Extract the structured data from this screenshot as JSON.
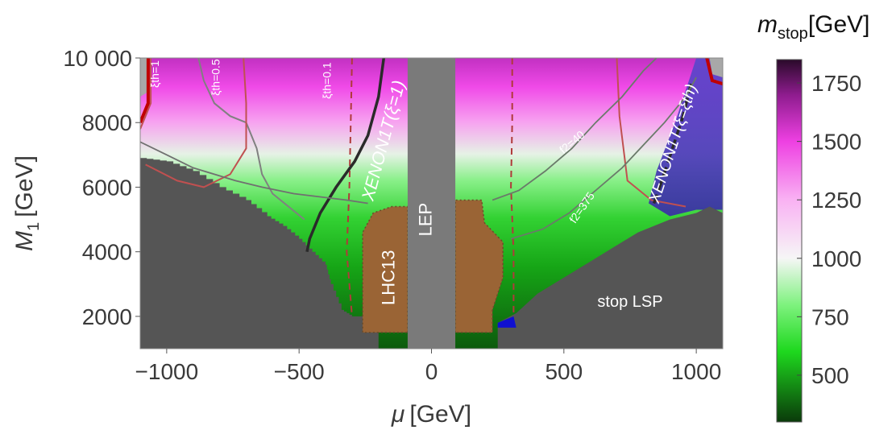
{
  "chart_data": {
    "type": "heatmap",
    "xlabel_sym": "μ",
    "xlabel_unit": "[GeV]",
    "ylabel_sym": "M",
    "ylabel_sub": "1",
    "ylabel_unit": "[GeV]",
    "xlim": [
      -1100,
      1100
    ],
    "ylim": [
      1000,
      10000
    ],
    "x_ticks": [
      {
        "value": -1000,
        "label": "−1000"
      },
      {
        "value": -500,
        "label": "−500"
      },
      {
        "value": 0,
        "label": "0"
      },
      {
        "value": 500,
        "label": "500"
      },
      {
        "value": 1000,
        "label": "1000"
      }
    ],
    "y_ticks": [
      {
        "value": 2000,
        "label": "2000"
      },
      {
        "value": 4000,
        "label": "4000"
      },
      {
        "value": 6000,
        "label": "6000"
      },
      {
        "value": 8000,
        "label": "8000"
      },
      {
        "value": 10000,
        "label": "10 000"
      }
    ],
    "colorbar": {
      "title_sym": "m",
      "title_sub": "stop",
      "title_unit": "[GeV]",
      "range": [
        300,
        1850
      ],
      "ticks": [
        {
          "value": 500,
          "label": "500"
        },
        {
          "value": 750,
          "label": "750"
        },
        {
          "value": 1000,
          "label": "1000"
        },
        {
          "value": 1250,
          "label": "1250"
        },
        {
          "value": 1500,
          "label": "1500"
        },
        {
          "value": 1750,
          "label": "1750"
        }
      ],
      "stops": [
        {
          "value": 300,
          "color": "#0a3a0a"
        },
        {
          "value": 600,
          "color": "#1ed81e"
        },
        {
          "value": 800,
          "color": "#7ef27e"
        },
        {
          "value": 1000,
          "color": "#f6f6f6"
        },
        {
          "value": 1250,
          "color": "#f9b2f3"
        },
        {
          "value": 1500,
          "color": "#ee40e2"
        },
        {
          "value": 1700,
          "color": "#8e1c8e"
        },
        {
          "value": 1850,
          "color": "#2a0a2a"
        }
      ]
    },
    "regions": {
      "stop_lsp": {
        "label": "stop LSP",
        "color": "#555555"
      },
      "lep": {
        "label": "LEP",
        "color": "#7a7a7a",
        "mu_range": [
          -90,
          90
        ]
      },
      "lhc13": {
        "label": "LHC13",
        "color": "#9a6435"
      },
      "xenon_left": {
        "label": "XENON1T(ξ=1)"
      },
      "xenon_right": {
        "label": "XENON1T(ξ=ξth)"
      }
    },
    "contour_labels": {
      "xi1": "ξth=1",
      "xi05": "ξth=0.5",
      "xi01": "ξth=0.1",
      "f2_40": "f2=40",
      "f2_375": "f2=375"
    }
  }
}
